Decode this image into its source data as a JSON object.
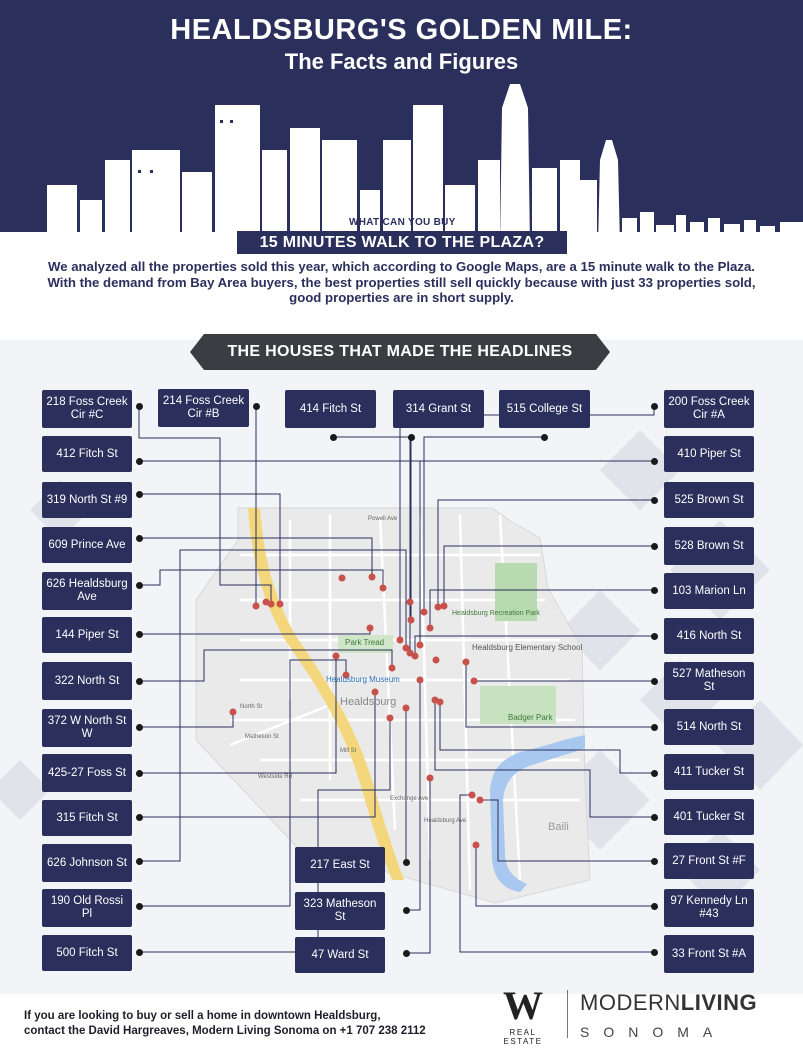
{
  "header": {
    "title": "HEALDSBURG'S GOLDEN MILE:",
    "subtitle": "The Facts and Figures"
  },
  "question": {
    "kicker": "WHAT CAN YOU BUY",
    "banner": "15 MINUTES WALK TO THE PLAZA?"
  },
  "intro": "We analyzed all the properties sold this year, which according to Google Maps, are a 15 minute walk to the Plaza. With the demand from Bay Area buyers, the best properties still sell quickly because with just 33 properties sold, good properties are in short supply.",
  "section_title": "THE HOUSES THAT MADE THE HEADLINES",
  "map_labels": {
    "park_tread": "Park Tread",
    "museum": "Healdsburg Museum",
    "recreation_park": "Healdsburg Recreation Park",
    "school": "Healdsburg Elementary School",
    "badger_park": "Badger Park",
    "healdsburg": "Healdsburg",
    "healdsburg_ave": "Healdsburg Ave",
    "mill_st": "Mill St",
    "westside_rd": "Westside Rd",
    "north_st": "North St",
    "powell_ave": "Powell Ave",
    "matheson_st": "Matheson St",
    "exchange_ave": "Exchange Ave",
    "baili": "Baili"
  },
  "properties": {
    "p218_foss_creek_c": "218 Foss Creek Cir #C",
    "p214_foss_creek_b": "214 Foss Creek Cir #B",
    "p414_fitch": "414 Fitch St",
    "p314_grant": "314 Grant St",
    "p515_college": "515 College St",
    "p200_foss_creek_a": "200 Foss Creek Cir #A",
    "p412_fitch": "412 Fitch St",
    "p410_piper": "410 Piper St",
    "p319_north_9": "319 North St #9",
    "p525_brown": "525 Brown St",
    "p609_prince": "609 Prince Ave",
    "p528_brown": "528 Brown St",
    "p626_healdsburg": "626 Healdsburg Ave",
    "p103_marion": "103 Marion Ln",
    "p144_piper": "144 Piper St",
    "p416_north": "416 North St",
    "p322_north": "322 North St",
    "p527_matheson": "527 Matheson St",
    "p372_w_north": "372 W North St W",
    "p514_north": "514 North St",
    "p425_27_foss": "425-27 Foss St",
    "p411_tucker": "411 Tucker St",
    "p315_fitch": "315 Fitch St",
    "p401_tucker": "401 Tucker St",
    "p626_johnson": "626 Johnson St",
    "p217_east": "217 East St",
    "p27_front_f": "27 Front St #F",
    "p190_old_rossi": "190 Old Rossi Pl",
    "p323_matheson": "323 Matheson St",
    "p97_kennedy_43": "97 Kennedy Ln #43",
    "p500_fitch": "500 Fitch St",
    "p47_ward": "47 Ward St",
    "p33_front_a": "33 Front St #A"
  },
  "footer": {
    "line1": "If you are looking to buy or sell a home in downtown Healdsburg,",
    "line2": "contact the David Hargreaves, Modern Living Sonoma on +1 707 238 2112"
  },
  "logos": {
    "w_letter": "W",
    "w_caption": "REAL ESTATE",
    "ml_part1": "MODERN",
    "ml_part2": "LIVING",
    "ml_part3": "SONOMA"
  },
  "colors": {
    "navy": "#2a2f5c",
    "banner_dark": "#3b3d42",
    "pin": "#c8514b",
    "park": "#b7dab0",
    "water": "#a9c8ef",
    "highway": "#f4d77c"
  }
}
